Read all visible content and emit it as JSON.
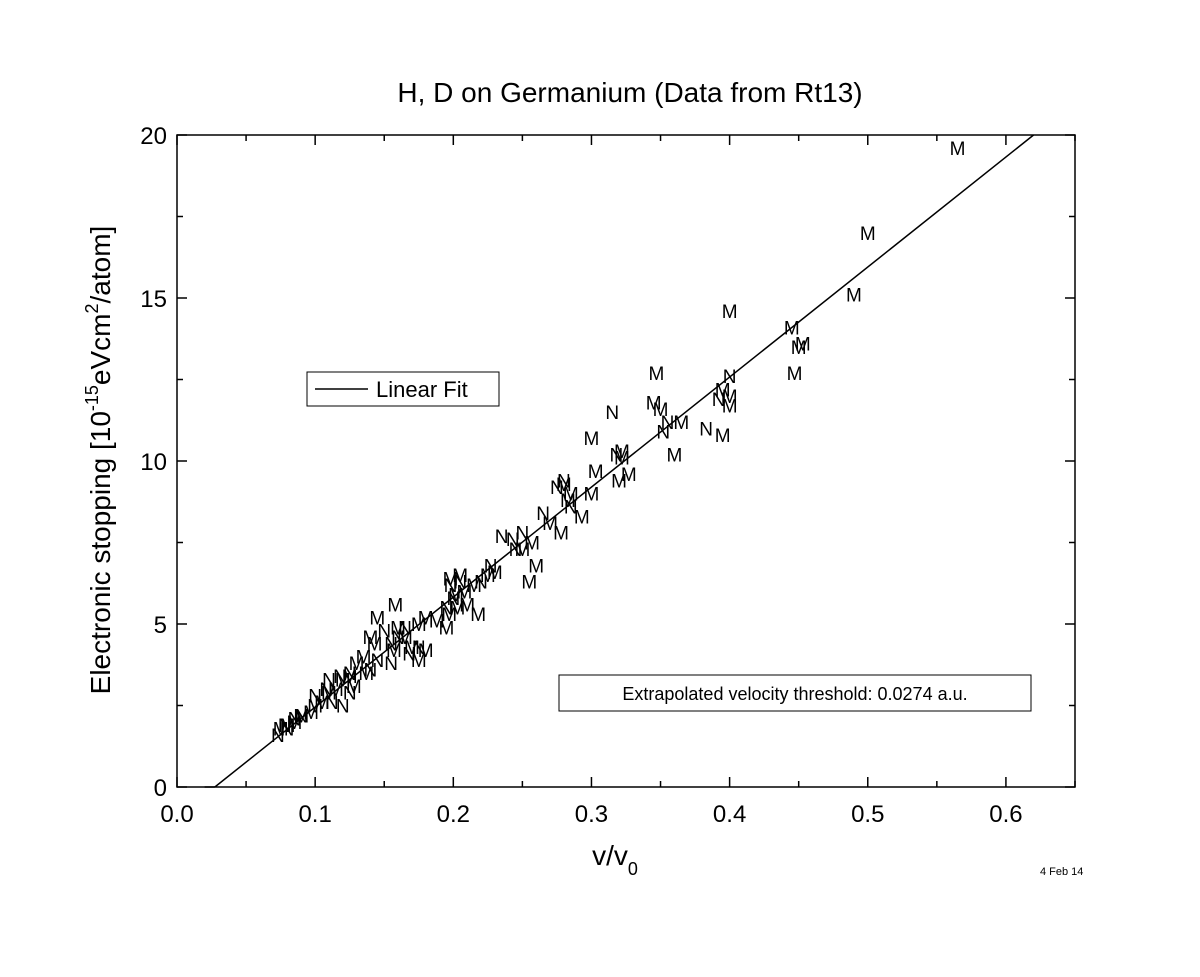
{
  "chart_data": {
    "type": "scatter",
    "title": "H, D on Germanium (Data from Rt13)",
    "xlabel": {
      "base": "v/v",
      "sub": "0"
    },
    "ylabel": {
      "pre": "Electronic stopping [10",
      "sup1": "-15",
      "mid": "eVcm",
      "sup2": "2",
      "post": "/atom]"
    },
    "xlim": [
      0.0,
      0.65
    ],
    "ylim": [
      0,
      20
    ],
    "xticks": [
      "0.0",
      "0.1",
      "0.2",
      "0.3",
      "0.4",
      "0.5",
      "0.6"
    ],
    "yticks": [
      "0",
      "5",
      "10",
      "15",
      "20"
    ],
    "grid": false,
    "legend": {
      "placement": "upper-left",
      "entries": [
        {
          "label": "Linear Fit",
          "style": "line"
        }
      ]
    },
    "annotation": "Extrapolated velocity threshold: 0.0274 a.u.",
    "fit_line": {
      "x": [
        0.0274,
        0.62
      ],
      "y": [
        0,
        20
      ]
    },
    "series": [
      {
        "marker": "M",
        "points": [
          [
            0.565,
            19.6
          ],
          [
            0.5,
            17.0
          ],
          [
            0.49,
            15.1
          ],
          [
            0.4,
            14.6
          ],
          [
            0.445,
            14.1
          ],
          [
            0.45,
            13.5
          ],
          [
            0.453,
            13.6
          ],
          [
            0.447,
            12.7
          ],
          [
            0.347,
            12.7
          ],
          [
            0.4,
            12.0
          ],
          [
            0.395,
            12.2
          ],
          [
            0.4,
            11.7
          ],
          [
            0.345,
            11.8
          ],
          [
            0.35,
            11.6
          ],
          [
            0.365,
            11.2
          ],
          [
            0.395,
            10.8
          ],
          [
            0.36,
            10.2
          ],
          [
            0.3,
            10.7
          ],
          [
            0.322,
            10.3
          ],
          [
            0.322,
            10.1
          ],
          [
            0.327,
            9.6
          ],
          [
            0.32,
            9.4
          ],
          [
            0.303,
            9.7
          ],
          [
            0.28,
            9.3
          ],
          [
            0.285,
            9.0
          ],
          [
            0.283,
            8.8
          ],
          [
            0.3,
            9.0
          ],
          [
            0.293,
            8.3
          ],
          [
            0.27,
            8.1
          ],
          [
            0.278,
            7.8
          ],
          [
            0.257,
            7.5
          ],
          [
            0.25,
            7.3
          ],
          [
            0.26,
            6.8
          ],
          [
            0.255,
            6.3
          ],
          [
            0.23,
            6.6
          ],
          [
            0.225,
            6.5
          ],
          [
            0.215,
            6.2
          ],
          [
            0.208,
            6.0
          ],
          [
            0.198,
            6.4
          ],
          [
            0.205,
            6.5
          ],
          [
            0.202,
            5.9
          ],
          [
            0.21,
            5.6
          ],
          [
            0.203,
            5.5
          ],
          [
            0.218,
            5.3
          ],
          [
            0.197,
            5.3
          ],
          [
            0.188,
            5.1
          ],
          [
            0.18,
            5.2
          ],
          [
            0.175,
            5.0
          ],
          [
            0.195,
            4.9
          ],
          [
            0.16,
            4.9
          ],
          [
            0.165,
            4.6
          ],
          [
            0.18,
            4.2
          ],
          [
            0.175,
            3.9
          ],
          [
            0.17,
            4.3
          ],
          [
            0.158,
            5.6
          ],
          [
            0.145,
            5.2
          ],
          [
            0.14,
            4.6
          ],
          [
            0.143,
            4.4
          ],
          [
            0.135,
            4.0
          ],
          [
            0.13,
            3.8
          ],
          [
            0.137,
            3.5
          ],
          [
            0.12,
            3.3
          ],
          [
            0.125,
            3.4
          ],
          [
            0.115,
            3.0
          ],
          [
            0.11,
            2.9
          ],
          [
            0.105,
            2.6
          ],
          [
            0.1,
            2.5
          ],
          [
            0.097,
            2.3
          ],
          [
            0.09,
            2.2
          ],
          [
            0.085,
            2.0
          ],
          [
            0.08,
            1.9
          ],
          [
            0.075,
            1.8
          ],
          [
            0.157,
            4.2
          ],
          [
            0.128,
            3.1
          ]
        ]
      },
      {
        "marker": "N",
        "points": [
          [
            0.4,
            12.6
          ],
          [
            0.392,
            11.9
          ],
          [
            0.355,
            11.2
          ],
          [
            0.383,
            11.0
          ],
          [
            0.352,
            10.9
          ],
          [
            0.315,
            11.5
          ],
          [
            0.318,
            10.2
          ],
          [
            0.28,
            9.4
          ],
          [
            0.275,
            9.2
          ],
          [
            0.265,
            8.4
          ],
          [
            0.285,
            8.6
          ],
          [
            0.25,
            7.8
          ],
          [
            0.243,
            7.6
          ],
          [
            0.235,
            7.7
          ],
          [
            0.245,
            7.3
          ],
          [
            0.227,
            6.8
          ],
          [
            0.22,
            6.3
          ],
          [
            0.205,
            6.3
          ],
          [
            0.2,
            5.8
          ],
          [
            0.198,
            6.2
          ],
          [
            0.195,
            5.5
          ],
          [
            0.165,
            4.9
          ],
          [
            0.16,
            4.6
          ],
          [
            0.155,
            4.4
          ],
          [
            0.15,
            4.8
          ],
          [
            0.168,
            4.1
          ],
          [
            0.175,
            4.3
          ],
          [
            0.145,
            3.9
          ],
          [
            0.14,
            3.6
          ],
          [
            0.125,
            3.5
          ],
          [
            0.118,
            3.4
          ],
          [
            0.11,
            3.3
          ],
          [
            0.108,
            3.0
          ],
          [
            0.1,
            2.8
          ],
          [
            0.112,
            2.6
          ],
          [
            0.12,
            2.5
          ],
          [
            0.09,
            2.2
          ],
          [
            0.085,
            2.1
          ],
          [
            0.08,
            1.8
          ],
          [
            0.078,
            1.9
          ],
          [
            0.073,
            1.6
          ],
          [
            0.155,
            3.8
          ],
          [
            0.125,
            2.9
          ]
        ]
      }
    ]
  },
  "footer": {
    "date_stamp": "4 Feb 14"
  }
}
